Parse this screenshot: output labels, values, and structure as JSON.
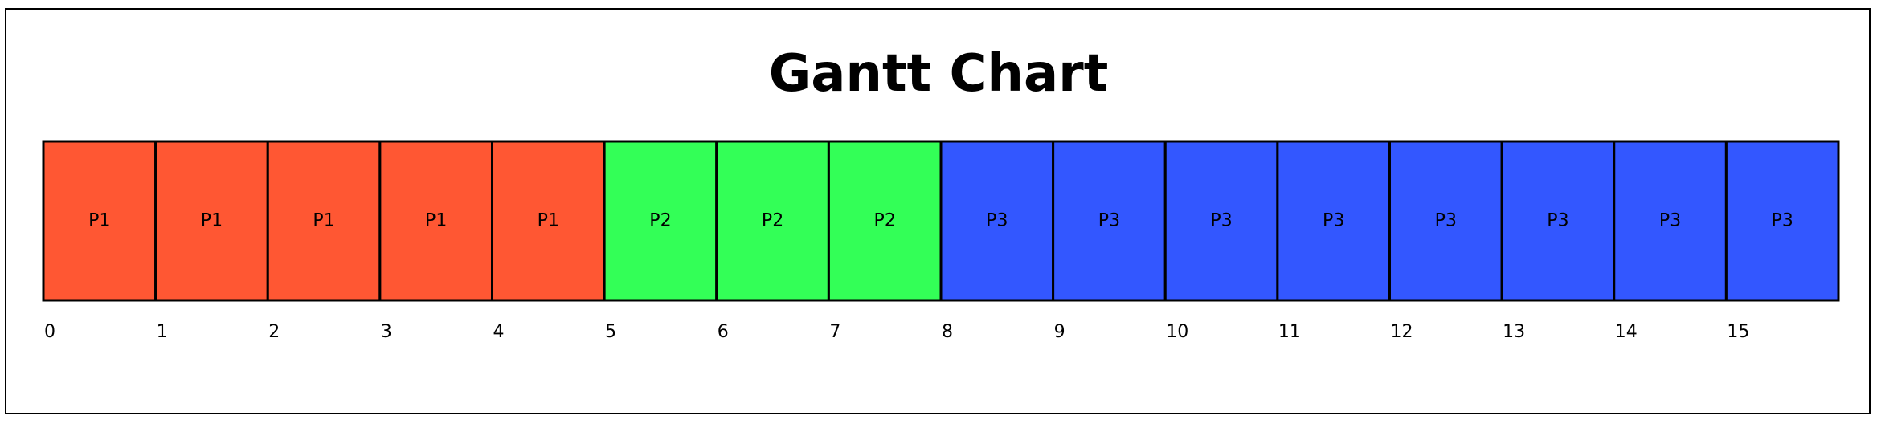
{
  "chart_data": {
    "type": "gantt",
    "title": "Gantt Chart",
    "xlabel": "",
    "ylabel": "",
    "time_unit_ticks": [
      0,
      1,
      2,
      3,
      4,
      5,
      6,
      7,
      8,
      9,
      10,
      11,
      12,
      13,
      14,
      15
    ],
    "xlim": [
      0,
      16
    ],
    "grid": false,
    "slots": [
      {
        "label": "P1",
        "start": 0,
        "end": 1
      },
      {
        "label": "P1",
        "start": 1,
        "end": 2
      },
      {
        "label": "P1",
        "start": 2,
        "end": 3
      },
      {
        "label": "P1",
        "start": 3,
        "end": 4
      },
      {
        "label": "P1",
        "start": 4,
        "end": 5
      },
      {
        "label": "P2",
        "start": 5,
        "end": 6
      },
      {
        "label": "P2",
        "start": 6,
        "end": 7
      },
      {
        "label": "P2",
        "start": 7,
        "end": 8
      },
      {
        "label": "P3",
        "start": 8,
        "end": 9
      },
      {
        "label": "P3",
        "start": 9,
        "end": 10
      },
      {
        "label": "P3",
        "start": 10,
        "end": 11
      },
      {
        "label": "P3",
        "start": 11,
        "end": 12
      },
      {
        "label": "P3",
        "start": 12,
        "end": 13
      },
      {
        "label": "P3",
        "start": 13,
        "end": 14
      },
      {
        "label": "P3",
        "start": 14,
        "end": 15
      },
      {
        "label": "P3",
        "start": 15,
        "end": 16
      }
    ],
    "colors": {
      "P1": "#FF5733",
      "P2": "#33FF57",
      "P3": "#3357FF"
    }
  }
}
